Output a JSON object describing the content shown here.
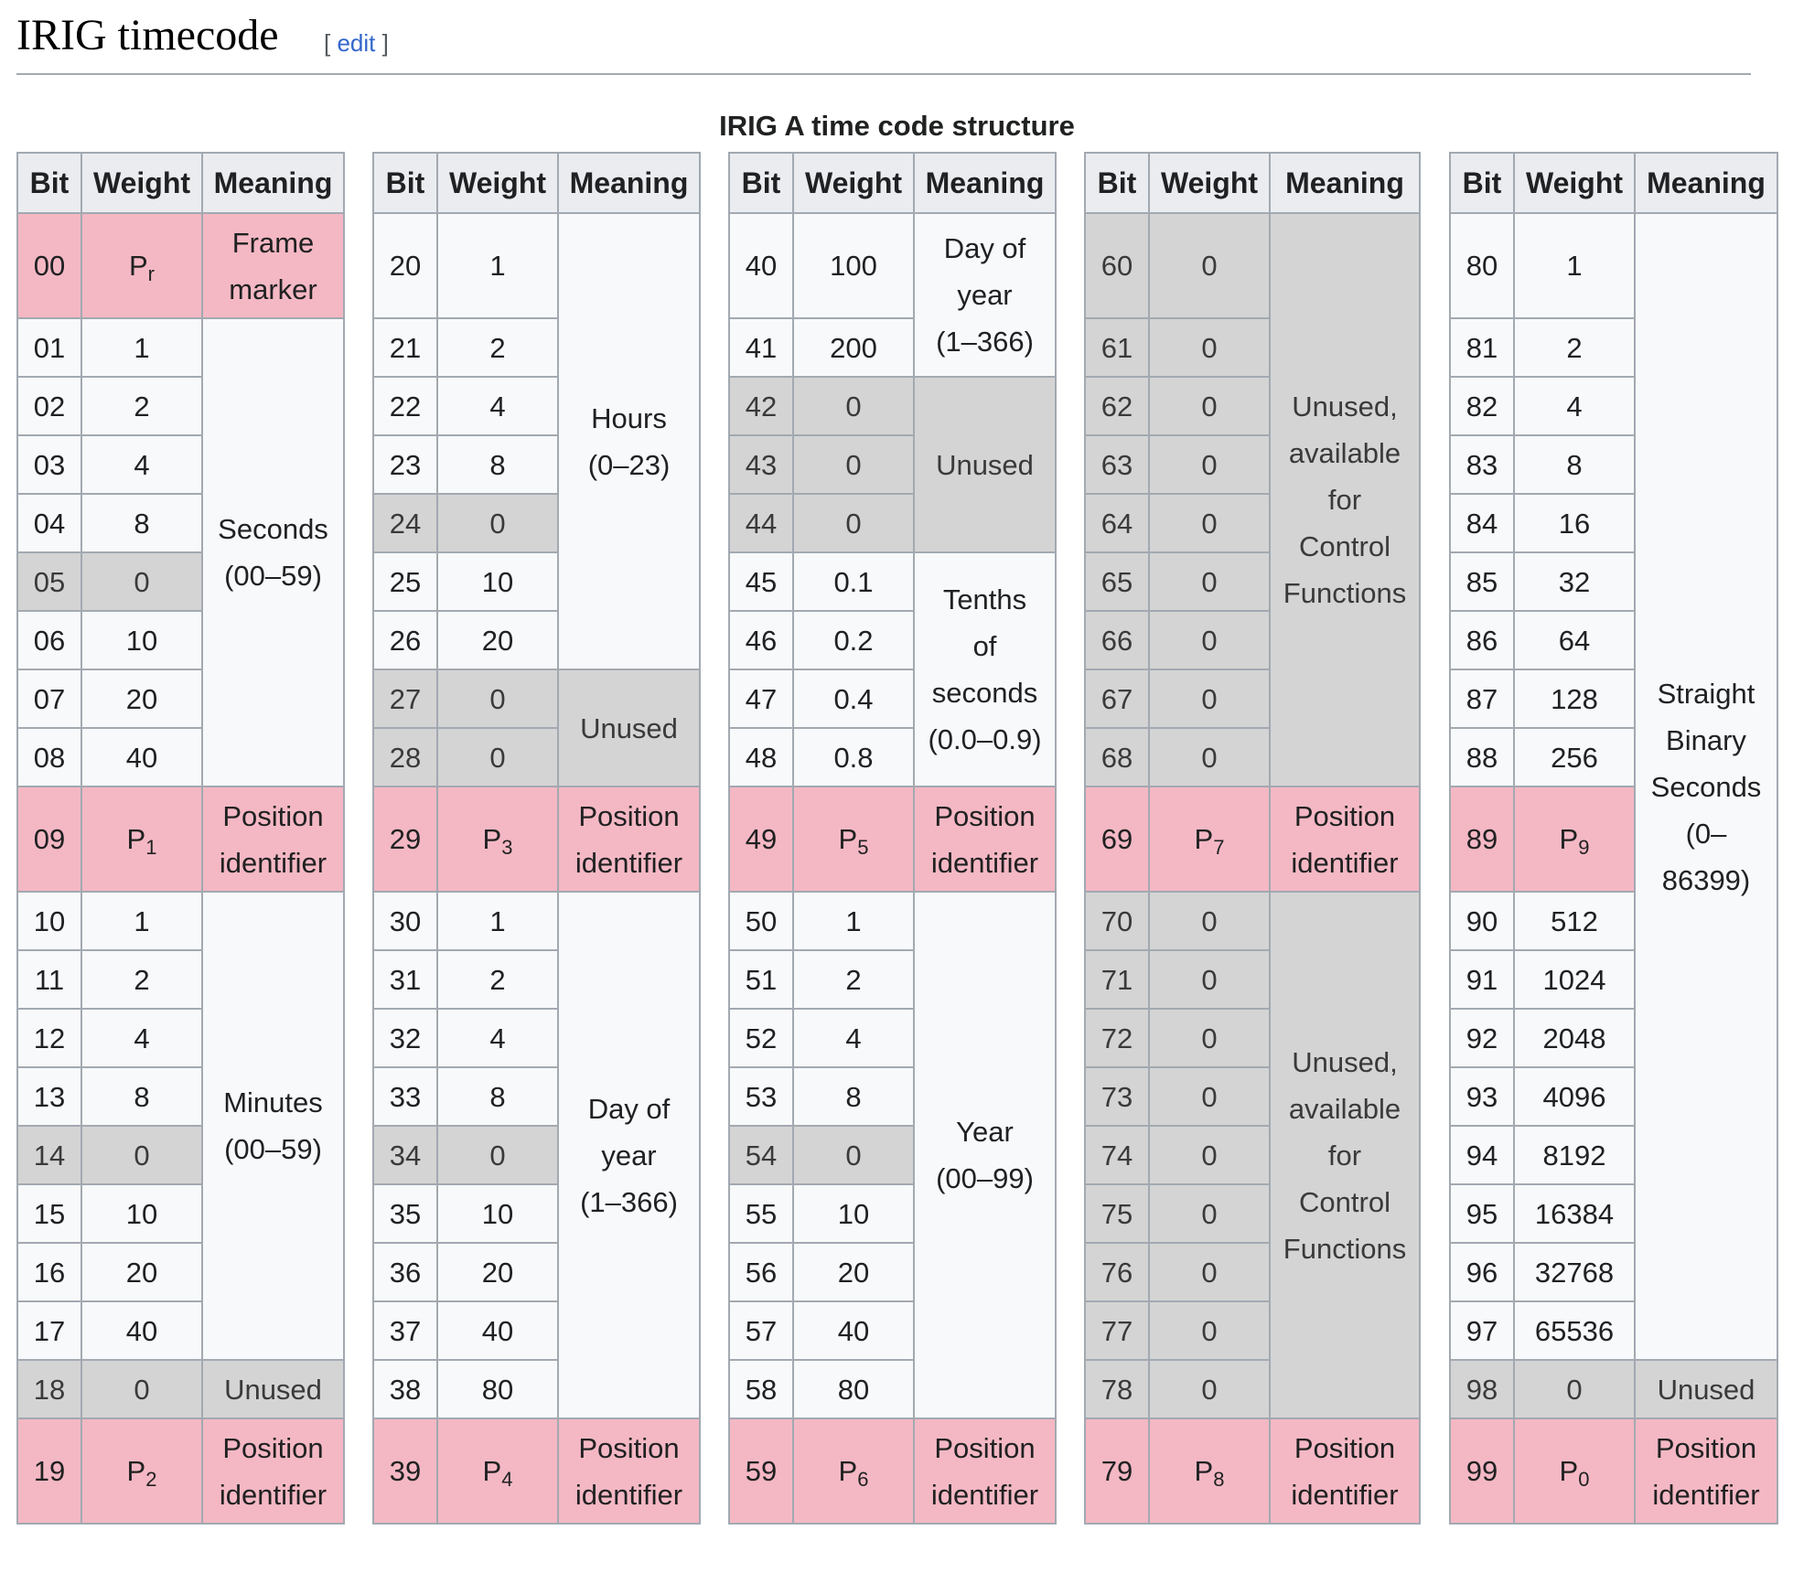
{
  "page": {
    "heading": "IRIG timecode",
    "edit_bracket_open": "[",
    "edit_label": "edit",
    "edit_bracket_close": "]"
  },
  "table": {
    "caption": "IRIG A time code structure",
    "headers": [
      "Bit",
      "Weight",
      "Meaning"
    ],
    "colors": {
      "header": "#eaecf0",
      "normal": "#f8f9fa",
      "unused": "#d4d4d4",
      "marker": "#f4b8c4",
      "border": "#a2a9b1"
    },
    "blocks": [
      {
        "rows": [
          {
            "bit": "00",
            "weight": "Pr",
            "sub": "r",
            "kind": "pink"
          },
          {
            "bit": "01",
            "weight": "1",
            "kind": "normal"
          },
          {
            "bit": "02",
            "weight": "2",
            "kind": "normal"
          },
          {
            "bit": "03",
            "weight": "4",
            "kind": "normal"
          },
          {
            "bit": "04",
            "weight": "8",
            "kind": "normal"
          },
          {
            "bit": "05",
            "weight": "0",
            "kind": "gray"
          },
          {
            "bit": "06",
            "weight": "10",
            "kind": "normal"
          },
          {
            "bit": "07",
            "weight": "20",
            "kind": "normal"
          },
          {
            "bit": "08",
            "weight": "40",
            "kind": "normal"
          },
          {
            "bit": "09",
            "weight": "P1",
            "sub": "1",
            "kind": "pink"
          },
          {
            "bit": "10",
            "weight": "1",
            "kind": "normal"
          },
          {
            "bit": "11",
            "weight": "2",
            "kind": "normal"
          },
          {
            "bit": "12",
            "weight": "4",
            "kind": "normal"
          },
          {
            "bit": "13",
            "weight": "8",
            "kind": "normal"
          },
          {
            "bit": "14",
            "weight": "0",
            "kind": "gray"
          },
          {
            "bit": "15",
            "weight": "10",
            "kind": "normal"
          },
          {
            "bit": "16",
            "weight": "20",
            "kind": "normal"
          },
          {
            "bit": "17",
            "weight": "40",
            "kind": "normal"
          },
          {
            "bit": "18",
            "weight": "0",
            "kind": "gray"
          },
          {
            "bit": "19",
            "weight": "P2",
            "sub": "2",
            "kind": "pink"
          }
        ],
        "meanings": [
          {
            "text": "Frame\nmarker",
            "rows": [
              0,
              0
            ],
            "kind": "pink"
          },
          {
            "text": "Seconds\n(00–59)",
            "rows": [
              1,
              8
            ],
            "kind": "normal"
          },
          {
            "text": "Position\nidentifier",
            "rows": [
              9,
              9
            ],
            "kind": "pink"
          },
          {
            "text": "Minutes\n(00–59)",
            "rows": [
              10,
              17
            ],
            "kind": "normal"
          },
          {
            "text": "Unused",
            "rows": [
              18,
              18
            ],
            "kind": "gray"
          },
          {
            "text": "Position\nidentifier",
            "rows": [
              19,
              19
            ],
            "kind": "pink"
          }
        ]
      },
      {
        "rows": [
          {
            "bit": "20",
            "weight": "1",
            "kind": "normal"
          },
          {
            "bit": "21",
            "weight": "2",
            "kind": "normal"
          },
          {
            "bit": "22",
            "weight": "4",
            "kind": "normal"
          },
          {
            "bit": "23",
            "weight": "8",
            "kind": "normal"
          },
          {
            "bit": "24",
            "weight": "0",
            "kind": "gray"
          },
          {
            "bit": "25",
            "weight": "10",
            "kind": "normal"
          },
          {
            "bit": "26",
            "weight": "20",
            "kind": "normal"
          },
          {
            "bit": "27",
            "weight": "0",
            "kind": "gray"
          },
          {
            "bit": "28",
            "weight": "0",
            "kind": "gray"
          },
          {
            "bit": "29",
            "weight": "P3",
            "sub": "3",
            "kind": "pink"
          },
          {
            "bit": "30",
            "weight": "1",
            "kind": "normal"
          },
          {
            "bit": "31",
            "weight": "2",
            "kind": "normal"
          },
          {
            "bit": "32",
            "weight": "4",
            "kind": "normal"
          },
          {
            "bit": "33",
            "weight": "8",
            "kind": "normal"
          },
          {
            "bit": "34",
            "weight": "0",
            "kind": "gray"
          },
          {
            "bit": "35",
            "weight": "10",
            "kind": "normal"
          },
          {
            "bit": "36",
            "weight": "20",
            "kind": "normal"
          },
          {
            "bit": "37",
            "weight": "40",
            "kind": "normal"
          },
          {
            "bit": "38",
            "weight": "80",
            "kind": "normal"
          },
          {
            "bit": "39",
            "weight": "P4",
            "sub": "4",
            "kind": "pink"
          }
        ],
        "meanings": [
          {
            "text": "Hours\n(0–23)",
            "rows": [
              0,
              6
            ],
            "kind": "normal"
          },
          {
            "text": "Unused",
            "rows": [
              7,
              8
            ],
            "kind": "gray"
          },
          {
            "text": "Position\nidentifier",
            "rows": [
              9,
              9
            ],
            "kind": "pink"
          },
          {
            "text": "Day of\nyear\n(1–366)",
            "rows": [
              10,
              18
            ],
            "kind": "normal"
          },
          {
            "text": "Position\nidentifier",
            "rows": [
              19,
              19
            ],
            "kind": "pink"
          }
        ]
      },
      {
        "rows": [
          {
            "bit": "40",
            "weight": "100",
            "kind": "normal"
          },
          {
            "bit": "41",
            "weight": "200",
            "kind": "normal"
          },
          {
            "bit": "42",
            "weight": "0",
            "kind": "gray"
          },
          {
            "bit": "43",
            "weight": "0",
            "kind": "gray"
          },
          {
            "bit": "44",
            "weight": "0",
            "kind": "gray"
          },
          {
            "bit": "45",
            "weight": "0.1",
            "kind": "normal"
          },
          {
            "bit": "46",
            "weight": "0.2",
            "kind": "normal"
          },
          {
            "bit": "47",
            "weight": "0.4",
            "kind": "normal"
          },
          {
            "bit": "48",
            "weight": "0.8",
            "kind": "normal"
          },
          {
            "bit": "49",
            "weight": "P5",
            "sub": "5",
            "kind": "pink"
          },
          {
            "bit": "50",
            "weight": "1",
            "kind": "normal"
          },
          {
            "bit": "51",
            "weight": "2",
            "kind": "normal"
          },
          {
            "bit": "52",
            "weight": "4",
            "kind": "normal"
          },
          {
            "bit": "53",
            "weight": "8",
            "kind": "normal"
          },
          {
            "bit": "54",
            "weight": "0",
            "kind": "gray"
          },
          {
            "bit": "55",
            "weight": "10",
            "kind": "normal"
          },
          {
            "bit": "56",
            "weight": "20",
            "kind": "normal"
          },
          {
            "bit": "57",
            "weight": "40",
            "kind": "normal"
          },
          {
            "bit": "58",
            "weight": "80",
            "kind": "normal"
          },
          {
            "bit": "59",
            "weight": "P6",
            "sub": "6",
            "kind": "pink"
          }
        ],
        "meanings": [
          {
            "text": "Day of\nyear\n(1–366)",
            "rows": [
              0,
              1
            ],
            "kind": "normal"
          },
          {
            "text": "Unused",
            "rows": [
              2,
              4
            ],
            "kind": "gray"
          },
          {
            "text": "Tenths\nof\nseconds\n(0.0–0.9)",
            "rows": [
              5,
              8
            ],
            "kind": "normal"
          },
          {
            "text": "Position\nidentifier",
            "rows": [
              9,
              9
            ],
            "kind": "pink"
          },
          {
            "text": "Year\n(00–99)",
            "rows": [
              10,
              18
            ],
            "kind": "normal"
          },
          {
            "text": "Position\nidentifier",
            "rows": [
              19,
              19
            ],
            "kind": "pink"
          }
        ]
      },
      {
        "rows": [
          {
            "bit": "60",
            "weight": "0",
            "kind": "gray"
          },
          {
            "bit": "61",
            "weight": "0",
            "kind": "gray"
          },
          {
            "bit": "62",
            "weight": "0",
            "kind": "gray"
          },
          {
            "bit": "63",
            "weight": "0",
            "kind": "gray"
          },
          {
            "bit": "64",
            "weight": "0",
            "kind": "gray"
          },
          {
            "bit": "65",
            "weight": "0",
            "kind": "gray"
          },
          {
            "bit": "66",
            "weight": "0",
            "kind": "gray"
          },
          {
            "bit": "67",
            "weight": "0",
            "kind": "gray"
          },
          {
            "bit": "68",
            "weight": "0",
            "kind": "gray"
          },
          {
            "bit": "69",
            "weight": "P7",
            "sub": "7",
            "kind": "pink"
          },
          {
            "bit": "70",
            "weight": "0",
            "kind": "gray"
          },
          {
            "bit": "71",
            "weight": "0",
            "kind": "gray"
          },
          {
            "bit": "72",
            "weight": "0",
            "kind": "gray"
          },
          {
            "bit": "73",
            "weight": "0",
            "kind": "gray"
          },
          {
            "bit": "74",
            "weight": "0",
            "kind": "gray"
          },
          {
            "bit": "75",
            "weight": "0",
            "kind": "gray"
          },
          {
            "bit": "76",
            "weight": "0",
            "kind": "gray"
          },
          {
            "bit": "77",
            "weight": "0",
            "kind": "gray"
          },
          {
            "bit": "78",
            "weight": "0",
            "kind": "gray"
          },
          {
            "bit": "79",
            "weight": "P8",
            "sub": "8",
            "kind": "pink"
          }
        ],
        "meanings": [
          {
            "text": "Unused,\navailable\nfor\nControl\nFunctions",
            "rows": [
              0,
              8
            ],
            "kind": "gray"
          },
          {
            "text": "Position\nidentifier",
            "rows": [
              9,
              9
            ],
            "kind": "pink"
          },
          {
            "text": "Unused,\navailable\nfor\nControl\nFunctions",
            "rows": [
              10,
              18
            ],
            "kind": "gray"
          },
          {
            "text": "Position\nidentifier",
            "rows": [
              19,
              19
            ],
            "kind": "pink"
          }
        ]
      },
      {
        "rows": [
          {
            "bit": "80",
            "weight": "1",
            "kind": "normal"
          },
          {
            "bit": "81",
            "weight": "2",
            "kind": "normal"
          },
          {
            "bit": "82",
            "weight": "4",
            "kind": "normal"
          },
          {
            "bit": "83",
            "weight": "8",
            "kind": "normal"
          },
          {
            "bit": "84",
            "weight": "16",
            "kind": "normal"
          },
          {
            "bit": "85",
            "weight": "32",
            "kind": "normal"
          },
          {
            "bit": "86",
            "weight": "64",
            "kind": "normal"
          },
          {
            "bit": "87",
            "weight": "128",
            "kind": "normal"
          },
          {
            "bit": "88",
            "weight": "256",
            "kind": "normal"
          },
          {
            "bit": "89",
            "weight": "P9",
            "sub": "9",
            "kind": "pink"
          },
          {
            "bit": "90",
            "weight": "512",
            "kind": "normal"
          },
          {
            "bit": "91",
            "weight": "1024",
            "kind": "normal"
          },
          {
            "bit": "92",
            "weight": "2048",
            "kind": "normal"
          },
          {
            "bit": "93",
            "weight": "4096",
            "kind": "normal"
          },
          {
            "bit": "94",
            "weight": "8192",
            "kind": "normal"
          },
          {
            "bit": "95",
            "weight": "16384",
            "kind": "normal"
          },
          {
            "bit": "96",
            "weight": "32768",
            "kind": "normal"
          },
          {
            "bit": "97",
            "weight": "65536",
            "kind": "normal"
          },
          {
            "bit": "98",
            "weight": "0",
            "kind": "gray"
          },
          {
            "bit": "99",
            "weight": "P0",
            "sub": "0",
            "kind": "pink"
          }
        ],
        "meanings": [
          {
            "text": "Straight\nBinary\nSeconds\n(0–\n86399)",
            "rows": [
              0,
              17
            ],
            "kind": "normal"
          },
          {
            "text": "Unused",
            "rows": [
              18,
              18
            ],
            "kind": "gray"
          },
          {
            "text": "Position\nidentifier",
            "rows": [
              19,
              19
            ],
            "kind": "pink"
          }
        ]
      }
    ]
  }
}
